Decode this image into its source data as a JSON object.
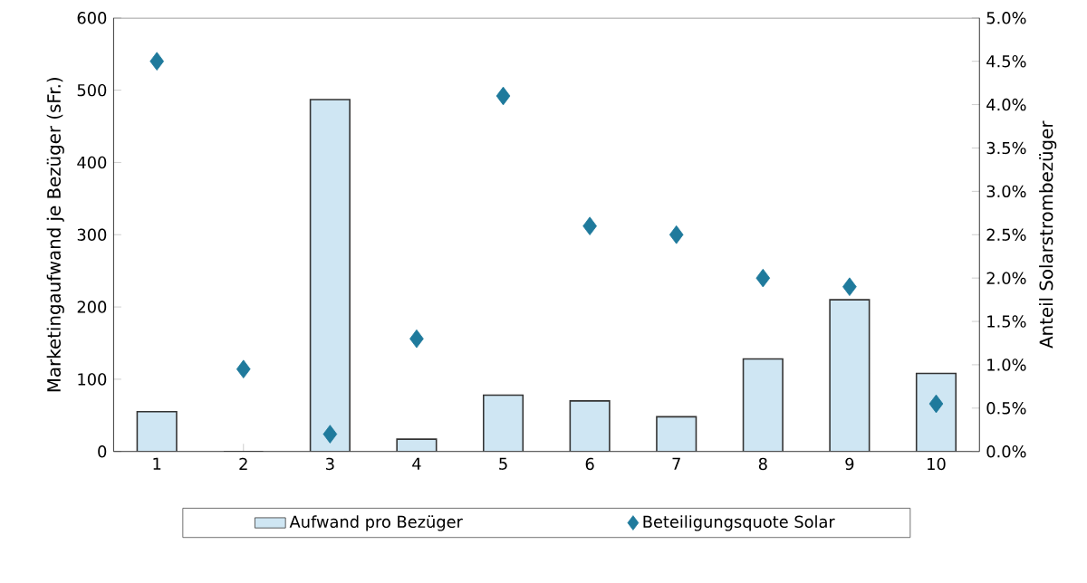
{
  "chart_data": {
    "type": "bar",
    "ylabel": "Marketingaufwand je Bezüger (sFr.)",
    "y2label": "Anteil Solarstrombezüger",
    "categories": [
      "1",
      "2",
      "3",
      "4",
      "5",
      "6",
      "7",
      "8",
      "9",
      "10"
    ],
    "series": [
      {
        "name": "Aufwand pro Bezüger",
        "color": "#cfe6f3",
        "values": [
          55,
          0,
          487,
          17,
          78,
          70,
          48,
          128,
          210,
          108
        ]
      },
      {
        "name": "Beteiligungsquote Solar",
        "type": "scatter",
        "axis": "y2",
        "marker": "diamond",
        "color": "#1f7a9c",
        "values": [
          4.5,
          0.95,
          0.2,
          1.3,
          4.1,
          2.6,
          2.5,
          2.0,
          1.9,
          0.55
        ]
      }
    ],
    "ylim": [
      0,
      600
    ],
    "yticks": [
      0,
      100,
      200,
      300,
      400,
      500,
      600
    ],
    "y2lim": [
      0,
      5
    ],
    "y2ticks": [
      {
        "value": 0,
        "label": "0.0%"
      },
      {
        "value": 0.5,
        "label": "0.5%"
      },
      {
        "value": 1,
        "label": "1.0%"
      },
      {
        "value": 1.5,
        "label": "1.5%"
      },
      {
        "value": 2,
        "label": "2.0%"
      },
      {
        "value": 2.5,
        "label": "2.5%"
      },
      {
        "value": 3,
        "label": "3.0%"
      },
      {
        "value": 3.5,
        "label": "3.5%"
      },
      {
        "value": 4,
        "label": "4.0%"
      },
      {
        "value": 4.5,
        "label": "4.5%"
      },
      {
        "value": 5,
        "label": "5.0%"
      }
    ],
    "grid": false,
    "legend": "bottom"
  }
}
